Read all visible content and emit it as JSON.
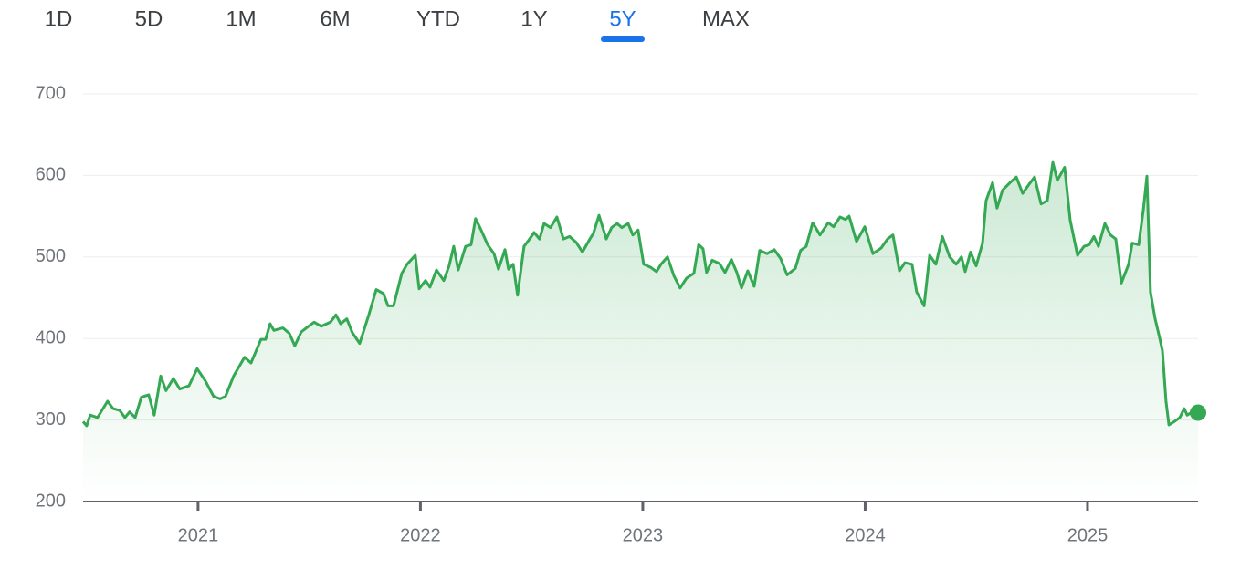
{
  "range_tabs": [
    "1D",
    "5D",
    "1M",
    "6M",
    "YTD",
    "1Y",
    "5Y",
    "MAX"
  ],
  "selected_range_index": 6,
  "chart_data": {
    "type": "line",
    "x": [
      2020.483,
      2020.499,
      2020.515,
      2020.548,
      2020.593,
      2020.618,
      2020.647,
      2020.671,
      2020.692,
      2020.717,
      2020.745,
      2020.778,
      2020.803,
      2020.832,
      2020.856,
      2020.889,
      2020.918,
      2020.959,
      2020.996,
      2021.033,
      2021.07,
      2021.099,
      2021.123,
      2021.16,
      2021.209,
      2021.238,
      2021.283,
      2021.304,
      2021.324,
      2021.341,
      2021.382,
      2021.411,
      2021.435,
      2021.464,
      2021.497,
      2021.522,
      2021.554,
      2021.595,
      2021.62,
      2021.641,
      2021.669,
      2021.694,
      2021.727,
      2021.768,
      2021.801,
      2021.834,
      2021.854,
      2021.879,
      2021.916,
      2021.94,
      2021.977,
      2021.994,
      2022.023,
      2022.043,
      2022.072,
      2022.105,
      2022.129,
      2022.15,
      2022.17,
      2022.203,
      2022.228,
      2022.248,
      2022.273,
      2022.302,
      2022.331,
      2022.351,
      2022.38,
      2022.396,
      2022.417,
      2022.437,
      2022.466,
      2022.491,
      2022.511,
      2022.536,
      2022.556,
      2022.585,
      2022.614,
      2022.643,
      2022.671,
      2022.7,
      2022.729,
      2022.762,
      2022.778,
      2022.803,
      2022.836,
      2022.86,
      2022.885,
      2022.906,
      2022.934,
      2022.955,
      2022.979,
      2023.004,
      2023.037,
      2023.062,
      2023.082,
      2023.111,
      2023.14,
      2023.168,
      2023.197,
      2023.23,
      2023.251,
      2023.271,
      2023.287,
      2023.312,
      2023.345,
      2023.37,
      2023.398,
      2023.423,
      2023.444,
      2023.472,
      2023.501,
      2023.526,
      2023.559,
      2023.591,
      2023.62,
      2023.649,
      2023.686,
      2023.71,
      2023.735,
      2023.764,
      2023.797,
      2023.834,
      2023.858,
      2023.887,
      2023.912,
      2023.928,
      2023.961,
      2023.998,
      2024.035,
      2024.072,
      2024.101,
      2024.125,
      2024.154,
      2024.179,
      2024.211,
      2024.232,
      2024.265,
      2024.29,
      2024.318,
      2024.347,
      2024.38,
      2024.409,
      2024.433,
      2024.45,
      2024.474,
      2024.499,
      2024.528,
      2024.544,
      2024.573,
      2024.593,
      2024.618,
      2024.651,
      2024.68,
      2024.708,
      2024.737,
      2024.762,
      2024.791,
      2024.819,
      2024.844,
      2024.864,
      2024.897,
      2024.922,
      2024.955,
      2024.984,
      2025.008,
      2025.029,
      2025.049,
      2025.078,
      2025.103,
      2025.127,
      2025.152,
      2025.185,
      2025.201,
      2025.23,
      2025.251,
      2025.267,
      2025.283,
      2025.304,
      2025.324,
      2025.337,
      2025.353,
      2025.366,
      2025.39,
      2025.415,
      2025.435,
      2025.448,
      2025.472,
      2025.497
    ],
    "values": [
      298,
      293,
      306,
      303,
      323,
      314,
      312,
      303,
      310,
      303,
      328,
      331,
      306,
      354,
      336,
      351,
      338,
      342,
      363,
      348,
      329,
      326,
      329,
      354,
      377,
      370,
      399,
      399,
      418,
      410,
      413,
      406,
      391,
      408,
      415,
      420,
      415,
      420,
      429,
      418,
      424,
      407,
      394,
      429,
      460,
      455,
      440,
      440,
      480,
      491,
      502,
      461,
      471,
      463,
      484,
      471,
      489,
      513,
      484,
      513,
      515,
      547,
      533,
      515,
      504,
      485,
      509,
      485,
      491,
      453,
      513,
      522,
      530,
      522,
      541,
      536,
      549,
      522,
      525,
      518,
      506,
      522,
      529,
      551,
      522,
      536,
      541,
      536,
      541,
      527,
      533,
      491,
      487,
      482,
      491,
      500,
      477,
      462,
      474,
      480,
      515,
      510,
      481,
      496,
      492,
      481,
      497,
      481,
      462,
      483,
      464,
      508,
      504,
      509,
      498,
      478,
      486,
      508,
      513,
      542,
      527,
      542,
      537,
      549,
      546,
      550,
      519,
      537,
      504,
      511,
      522,
      527,
      483,
      493,
      491,
      457,
      440,
      502,
      491,
      525,
      500,
      491,
      500,
      482,
      506,
      489,
      517,
      569,
      591,
      560,
      582,
      591,
      598,
      578,
      589,
      598,
      565,
      569,
      616,
      594,
      610,
      545,
      502,
      513,
      515,
      525,
      513,
      541,
      527,
      522,
      468,
      491,
      517,
      515,
      558,
      599,
      457,
      424,
      401,
      385,
      323,
      294,
      298,
      303,
      314,
      306,
      310,
      309
    ],
    "color": "#34a853",
    "xlim": [
      2020.483,
      2025.497
    ],
    "xticks": [
      2021,
      2022,
      2023,
      2024,
      2025
    ],
    "ylim": [
      200,
      700
    ],
    "yticks": [
      200,
      300,
      400,
      500,
      600,
      700
    ],
    "grid": true
  }
}
